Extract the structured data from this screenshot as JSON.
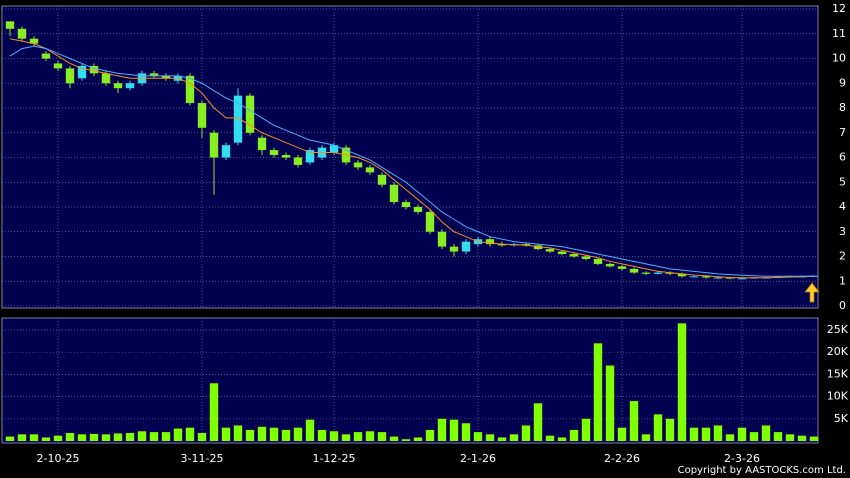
{
  "chart_data": {
    "type": "candlestick",
    "categories": [
      null,
      null,
      null,
      null,
      "2-10-25",
      null,
      null,
      null,
      null,
      null,
      null,
      null,
      null,
      null,
      null,
      null,
      "3-11-25",
      null,
      null,
      null,
      null,
      null,
      null,
      null,
      null,
      null,
      null,
      "1-12-25",
      null,
      null,
      null,
      null,
      null,
      null,
      null,
      null,
      null,
      null,
      null,
      "2-1-26",
      null,
      null,
      null,
      null,
      null,
      null,
      null,
      null,
      null,
      null,
      null,
      "2-2-26",
      null,
      null,
      null,
      null,
      null,
      null,
      null,
      null,
      null,
      "2-3-26",
      null,
      null,
      null,
      null,
      null,
      null
    ],
    "open": [
      11.5,
      11.2,
      10.8,
      10.2,
      9.8,
      9.6,
      9.2,
      9.7,
      9.4,
      9.0,
      8.8,
      9.0,
      9.4,
      9.3,
      9.1,
      9.3,
      8.2,
      7.0,
      6.0,
      6.6,
      8.5,
      6.8,
      6.3,
      6.1,
      6.0,
      5.8,
      6.0,
      6.2,
      6.4,
      5.8,
      5.6,
      5.3,
      4.9,
      4.2,
      4.0,
      3.8,
      3.0,
      2.4,
      2.2,
      2.5,
      2.7,
      2.5,
      2.45,
      2.5,
      2.45,
      2.3,
      2.2,
      2.1,
      2.0,
      1.9,
      1.7,
      1.6,
      1.5,
      1.35,
      1.3,
      1.35,
      1.3,
      1.2,
      1.2,
      1.15,
      1.15,
      1.12,
      1.12,
      1.15,
      1.15,
      1.18,
      1.2,
      1.2
    ],
    "high": [
      11.5,
      11.3,
      10.9,
      10.3,
      9.9,
      9.7,
      9.8,
      9.8,
      9.5,
      9.1,
      9.1,
      9.5,
      9.5,
      9.4,
      9.4,
      9.4,
      8.3,
      7.1,
      6.6,
      8.8,
      8.6,
      6.9,
      6.4,
      6.2,
      6.1,
      6.4,
      6.5,
      6.6,
      6.5,
      5.9,
      5.7,
      5.4,
      5.0,
      4.3,
      4.1,
      3.9,
      3.1,
      2.5,
      2.7,
      2.8,
      2.8,
      2.6,
      2.55,
      2.55,
      2.5,
      2.35,
      2.25,
      2.15,
      2.05,
      1.95,
      1.75,
      1.65,
      1.55,
      1.4,
      1.4,
      1.4,
      1.35,
      1.25,
      1.25,
      1.2,
      1.18,
      1.15,
      1.17,
      1.18,
      1.2,
      1.22,
      1.23,
      1.24
    ],
    "low": [
      10.9,
      10.7,
      10.5,
      9.9,
      9.5,
      8.8,
      9.1,
      9.3,
      8.9,
      8.6,
      8.7,
      8.9,
      9.2,
      9.1,
      9.0,
      8.1,
      6.8,
      4.5,
      5.9,
      6.5,
      6.9,
      6.1,
      6.0,
      5.9,
      5.6,
      5.7,
      5.9,
      6.1,
      5.7,
      5.5,
      5.3,
      4.8,
      4.1,
      3.9,
      3.7,
      2.9,
      2.3,
      2.0,
      2.1,
      2.4,
      2.4,
      2.4,
      2.4,
      2.4,
      2.25,
      2.15,
      2.05,
      1.95,
      1.85,
      1.65,
      1.55,
      1.45,
      1.3,
      1.25,
      1.28,
      1.25,
      1.15,
      1.15,
      1.1,
      1.1,
      1.08,
      1.1,
      1.1,
      1.12,
      1.14,
      1.17,
      1.18,
      1.19
    ],
    "close": [
      11.2,
      10.8,
      10.6,
      10.0,
      9.6,
      9.0,
      9.7,
      9.4,
      9.0,
      8.8,
      9.0,
      9.4,
      9.3,
      9.2,
      9.3,
      8.2,
      7.2,
      6.0,
      6.5,
      8.5,
      7.0,
      6.3,
      6.1,
      6.0,
      5.7,
      6.3,
      6.4,
      6.5,
      5.8,
      5.6,
      5.4,
      4.9,
      4.2,
      4.0,
      3.8,
      3.0,
      2.4,
      2.2,
      2.6,
      2.7,
      2.5,
      2.45,
      2.5,
      2.45,
      2.3,
      2.2,
      2.1,
      2.0,
      1.9,
      1.7,
      1.6,
      1.5,
      1.35,
      1.3,
      1.35,
      1.3,
      1.2,
      1.2,
      1.15,
      1.15,
      1.12,
      1.12,
      1.15,
      1.15,
      1.18,
      1.2,
      1.2,
      1.22
    ],
    "up_color": "#33ddee",
    "down_color": "#88ee22",
    "moving_averages": [
      {
        "color": "#ff8c1a",
        "values": [
          10.8,
          10.7,
          10.6,
          10.4,
          10.1,
          9.8,
          9.6,
          9.5,
          9.4,
          9.3,
          9.2,
          9.2,
          9.2,
          9.2,
          9.2,
          9.0,
          8.6,
          8.0,
          7.6,
          7.6,
          7.3,
          7.0,
          6.8,
          6.6,
          6.4,
          6.2,
          6.2,
          6.2,
          6.1,
          6.0,
          5.8,
          5.5,
          5.1,
          4.7,
          4.3,
          3.9,
          3.4,
          3.0,
          2.8,
          2.6,
          2.55,
          2.5,
          2.48,
          2.45,
          2.4,
          2.35,
          2.25,
          2.15,
          2.05,
          1.95,
          1.8,
          1.7,
          1.6,
          1.5,
          1.4,
          1.35,
          1.3,
          1.25,
          1.22,
          1.18,
          1.15,
          1.14,
          1.14,
          1.14,
          1.15,
          1.17,
          1.18,
          1.2
        ]
      },
      {
        "color": "#4fb0ff",
        "values": [
          10.1,
          10.4,
          10.5,
          10.4,
          10.2,
          10.0,
          9.8,
          9.6,
          9.5,
          9.4,
          9.35,
          9.3,
          9.3,
          9.3,
          9.3,
          9.2,
          9.0,
          8.7,
          8.4,
          8.2,
          7.9,
          7.6,
          7.3,
          7.1,
          6.9,
          6.7,
          6.6,
          6.5,
          6.3,
          6.1,
          5.9,
          5.6,
          5.3,
          5.0,
          4.6,
          4.2,
          3.8,
          3.5,
          3.2,
          3.0,
          2.8,
          2.7,
          2.6,
          2.55,
          2.5,
          2.45,
          2.4,
          2.3,
          2.2,
          2.1,
          2.0,
          1.9,
          1.8,
          1.7,
          1.6,
          1.5,
          1.45,
          1.4,
          1.35,
          1.3,
          1.27,
          1.24,
          1.22,
          1.2,
          1.2,
          1.2,
          1.2,
          1.21
        ]
      }
    ],
    "ylim": [
      0,
      12
    ],
    "yticks": [
      0,
      1,
      2,
      3,
      4,
      5,
      6,
      7,
      8,
      9,
      10,
      11,
      12
    ],
    "grid": true,
    "volume": {
      "color": "#7fff00",
      "values": [
        1000,
        1500,
        1500,
        800,
        1200,
        1800,
        1500,
        1600,
        1500,
        1700,
        1800,
        2200,
        2000,
        2000,
        2800,
        3000,
        1800,
        13000,
        3000,
        3500,
        2500,
        3200,
        3000,
        2500,
        3000,
        4800,
        2500,
        2200,
        1500,
        2000,
        2200,
        2000,
        1000,
        400,
        800,
        2500,
        5000,
        4800,
        4000,
        2000,
        1500,
        800,
        1500,
        3500,
        8500,
        1200,
        800,
        2500,
        5000,
        22000,
        17000,
        3000,
        9000,
        1500,
        6000,
        5000,
        26500,
        3000,
        3000,
        3500,
        1500,
        3000,
        2000,
        3500,
        2000,
        1500,
        1200,
        1000
      ],
      "ylim": [
        0,
        27700
      ],
      "yticks": [
        {
          "value": 5000,
          "label": "5K"
        },
        {
          "value": 10000,
          "label": "10K"
        },
        {
          "value": 15000,
          "label": "15K"
        },
        {
          "value": 20000,
          "label": "20K"
        },
        {
          "value": 25000,
          "label": "25K"
        }
      ]
    },
    "footer": "Copyright by AASTOCKS.com Ltd."
  }
}
